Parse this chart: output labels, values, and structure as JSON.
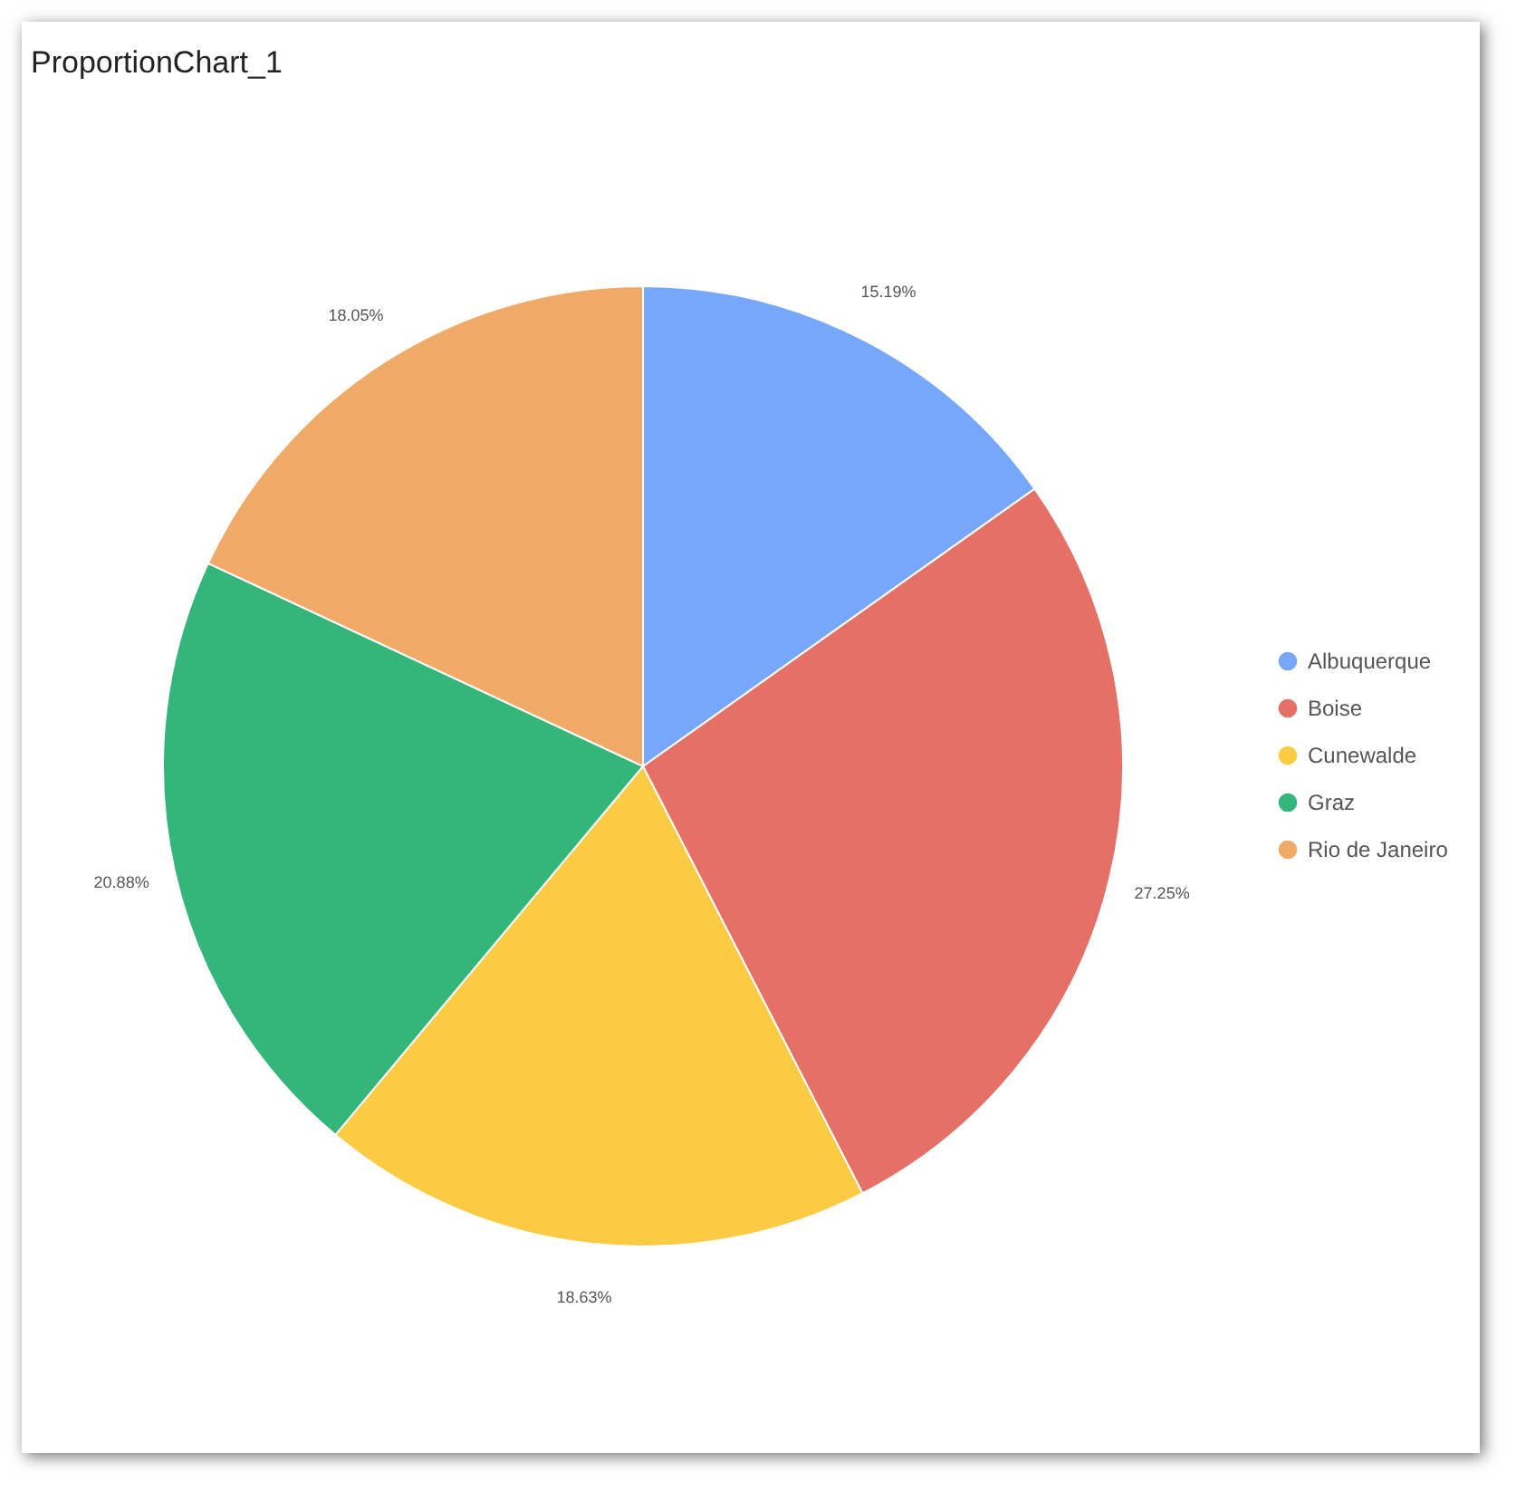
{
  "chart_data": {
    "type": "pie",
    "title": "ProportionChart_1",
    "categories": [
      "Albuquerque",
      "Boise",
      "Cunewalde",
      "Graz",
      "Rio de Janeiro"
    ],
    "values": [
      15.19,
      27.25,
      18.63,
      20.88,
      18.05
    ],
    "colors": [
      "#76a7fa",
      "#e57066",
      "#fbcb43",
      "#34b67a",
      "#efaa67"
    ],
    "value_labels": [
      "15.19%",
      "27.25%",
      "18.63%",
      "20.88%",
      "18.05%"
    ],
    "legend": "right"
  }
}
